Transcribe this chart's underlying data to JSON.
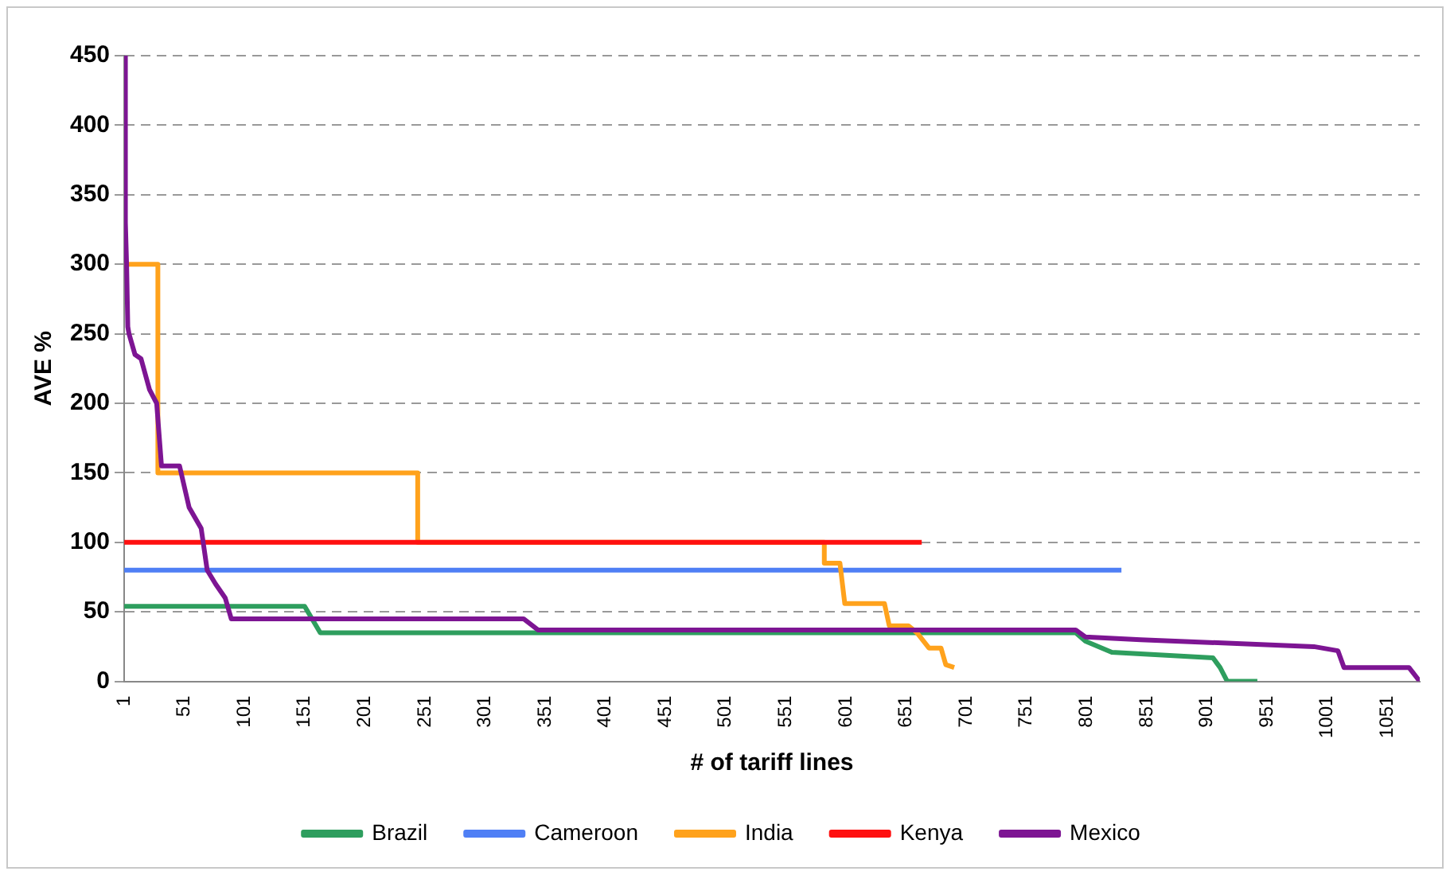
{
  "chart_data": {
    "type": "line",
    "xlabel": "# of tariff lines",
    "ylabel": "AVE %",
    "xlim": [
      1,
      1078
    ],
    "xticks": [
      1,
      51,
      101,
      151,
      201,
      251,
      301,
      351,
      401,
      451,
      501,
      551,
      601,
      651,
      701,
      751,
      801,
      851,
      901,
      951,
      1001,
      1051
    ],
    "ylim": [
      0,
      450
    ],
    "yticks": [
      0,
      50,
      100,
      150,
      200,
      250,
      300,
      350,
      400,
      450
    ],
    "grid": "y",
    "legend": "bottom",
    "marker": "none",
    "line_style": "solid",
    "series": [
      {
        "name": "Brazil",
        "color": "#2e9e5e",
        "x": [
          1,
          151,
          164,
          792,
          800,
          822,
          906,
          912,
          918,
          943
        ],
        "values": [
          54,
          54,
          35,
          35,
          29,
          21,
          17,
          10,
          0,
          0
        ]
      },
      {
        "name": "Cameroon",
        "color": "#4f7ff5",
        "x": [
          1,
          830
        ],
        "values": [
          80,
          80
        ]
      },
      {
        "name": "India",
        "color": "#ffa21c",
        "x": [
          1,
          29,
          29,
          245,
          245,
          583,
          583,
          596,
          600,
          633,
          637,
          653,
          660,
          670,
          680,
          684,
          691
        ],
        "values": [
          300,
          300,
          150,
          150,
          100,
          100,
          85,
          85,
          56,
          56,
          40,
          40,
          35,
          24,
          24,
          12,
          10
        ]
      },
      {
        "name": "Kenya",
        "color": "#ff1010",
        "x": [
          1,
          664
        ],
        "values": [
          100,
          100
        ]
      },
      {
        "name": "Mexico",
        "color": "#7d1593",
        "x": [
          1,
          2,
          3,
          4,
          5,
          10,
          15,
          22,
          28,
          32,
          47,
          55,
          65,
          70,
          77,
          85,
          90,
          333,
          345,
          792,
          800,
          846,
          990,
          1010,
          1015,
          1069,
          1078
        ],
        "values": [
          450,
          330,
          300,
          255,
          250,
          235,
          232,
          210,
          200,
          155,
          155,
          125,
          110,
          80,
          70,
          60,
          45,
          45,
          37,
          37,
          32,
          30,
          25,
          22,
          10,
          10,
          0
        ]
      }
    ]
  }
}
